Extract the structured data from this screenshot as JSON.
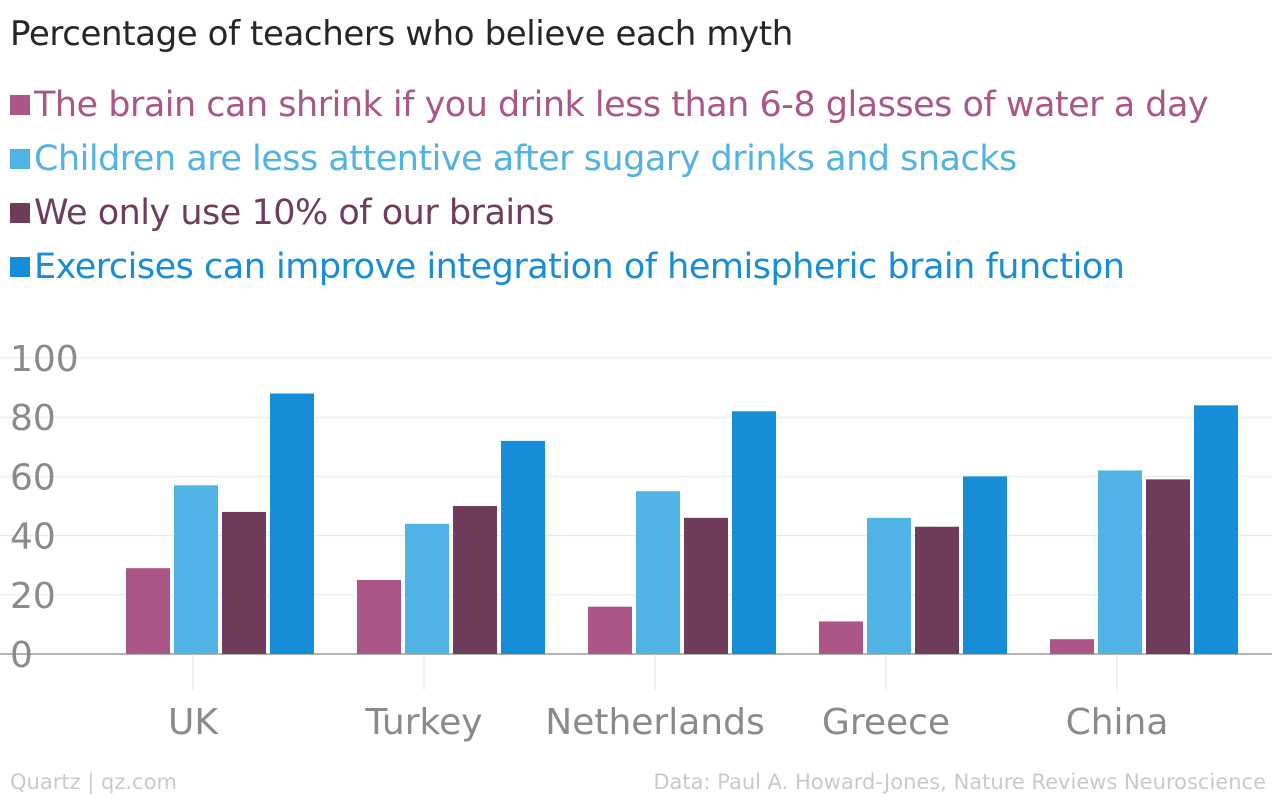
{
  "chart_data": {
    "type": "bar",
    "title": "Percentage of teachers who believe each myth",
    "categories": [
      "UK",
      "Turkey",
      "Netherlands",
      "Greece",
      "China"
    ],
    "series": [
      {
        "name": "The brain can shrink if you drink less than 6-8 glasses of water a day",
        "color": "#ac5587",
        "values": [
          29,
          25,
          16,
          11,
          5
        ]
      },
      {
        "name": "Children are less attentive after sugary drinks and snacks",
        "color": "#51b2e5",
        "values": [
          57,
          44,
          55,
          46,
          62
        ]
      },
      {
        "name": "We only use 10% of our brains",
        "color": "#703c5c",
        "values": [
          48,
          50,
          46,
          43,
          59
        ]
      },
      {
        "name": "Exercises can improve integration of hemispheric brain function",
        "color": "#168dd9",
        "values": [
          88,
          72,
          82,
          60,
          84
        ]
      }
    ],
    "yticks": [
      0,
      20,
      40,
      60,
      80,
      100
    ],
    "ylim": [
      0,
      100
    ],
    "grid": true,
    "legend_position": "top-left"
  },
  "footer": {
    "source_left": "Quartz | qz.com",
    "source_right": "Data: Paul A. Howard-Jones, Nature Reviews Neuroscience"
  }
}
